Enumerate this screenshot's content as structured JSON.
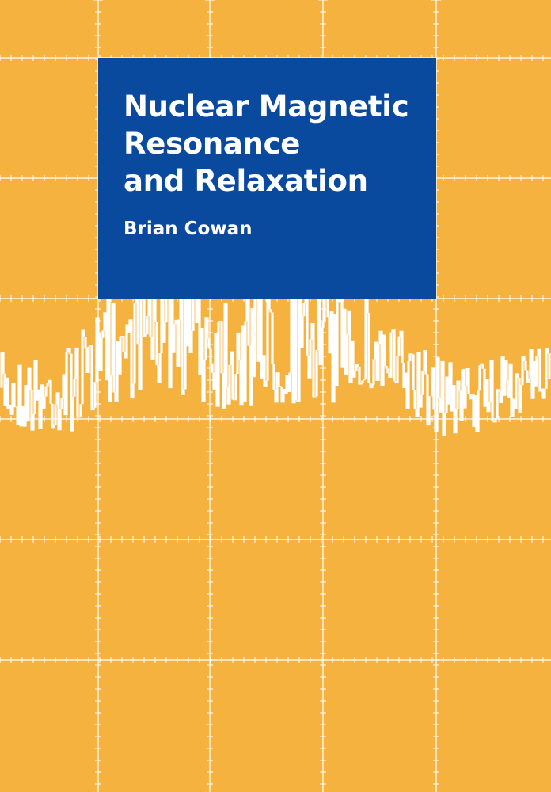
{
  "cover": {
    "title_lines": [
      "Nuclear Magnetic",
      "Resonance",
      "and Relaxation"
    ],
    "author": "Brian Cowan"
  },
  "colors": {
    "background": "#f6b23f",
    "grid": "#ffffff",
    "title_panel": "#0a4a9e",
    "signal_trace": "#ffffff",
    "text": "#ffffff"
  },
  "icons": {
    "artwork": "nmr-signal-trace"
  }
}
